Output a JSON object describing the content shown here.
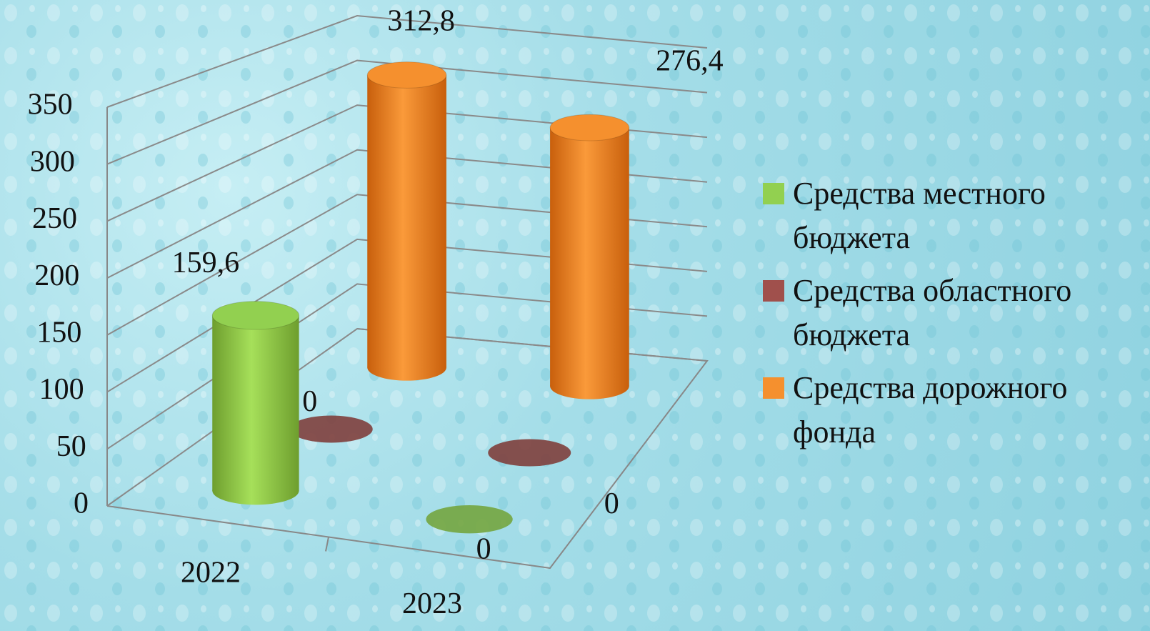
{
  "chart_data": {
    "type": "bar3d",
    "categories": [
      "2022",
      "2023"
    ],
    "series": [
      {
        "name": "Средства местного бюджета",
        "color": "#92d050",
        "values": [
          159.6,
          0
        ],
        "value_labels": [
          "159,6",
          "0"
        ]
      },
      {
        "name": "Средства областного бюджета",
        "color": "#a0504c",
        "values": [
          0,
          0
        ],
        "value_labels": [
          "0",
          "0"
        ]
      },
      {
        "name": "Средства дорожного фонда",
        "color": "#f5902e",
        "values": [
          312.8,
          276.4
        ],
        "value_labels": [
          "312,8",
          "276,4"
        ]
      }
    ],
    "ylim": [
      0,
      350
    ],
    "yticks": [
      0,
      50,
      100,
      150,
      200,
      250,
      300,
      350
    ],
    "grid": true,
    "legend": "right"
  }
}
